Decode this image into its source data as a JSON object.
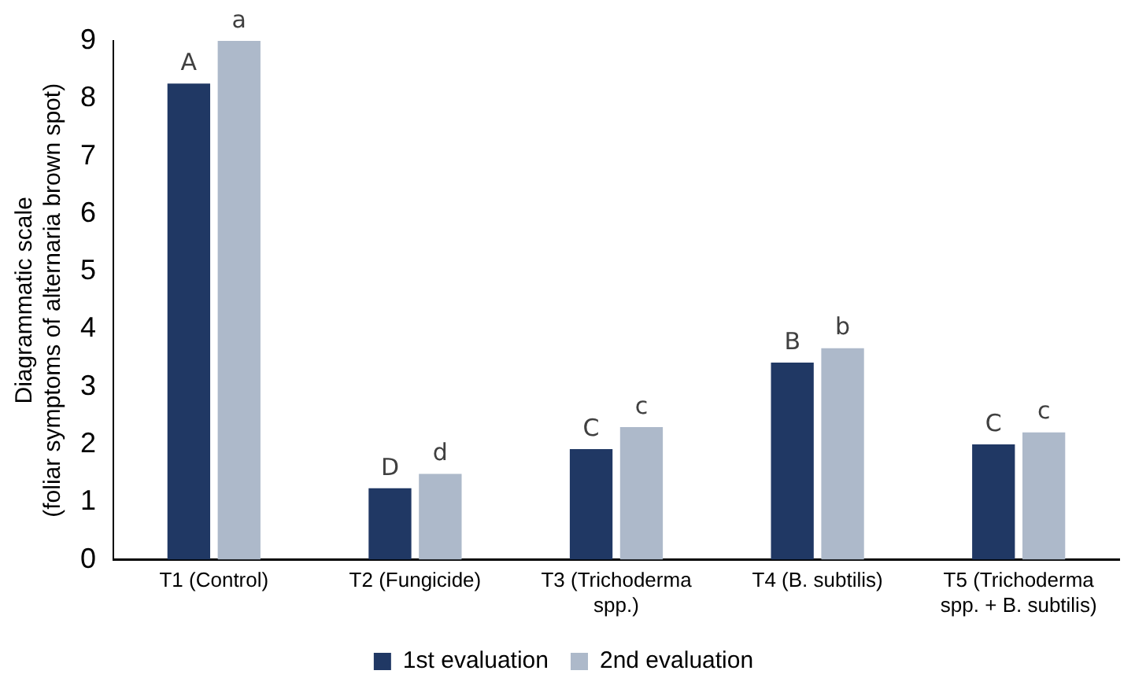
{
  "chart_data": {
    "type": "bar",
    "ylabel": "Diagrammatic scale\n(foliar symptoms of alternaria brown spot)",
    "categories": [
      "T1 (Control)",
      "T2 (Fungicide)",
      "T3 (Trichoderma spp.)",
      "T4 (B. subtilis)",
      "T5 (Trichoderma spp. + B. subtilis)"
    ],
    "series": [
      {
        "name": "1st evaluation",
        "color": "#203864",
        "values": [
          8.26,
          1.24,
          1.92,
          3.42,
          2.0
        ],
        "value_labels": [
          "A",
          "D",
          "C",
          "B",
          "C"
        ]
      },
      {
        "name": "2nd evaluation",
        "color": "#adb9ca",
        "values": [
          9.0,
          1.49,
          2.3,
          3.67,
          2.21
        ],
        "value_labels": [
          "a",
          "d",
          "c",
          "b",
          "c"
        ]
      }
    ],
    "ylim": [
      0,
      9
    ],
    "yticks": [
      0,
      1,
      2,
      3,
      4,
      5,
      6,
      7,
      8,
      9
    ],
    "grid": false,
    "legend": "bottom"
  }
}
